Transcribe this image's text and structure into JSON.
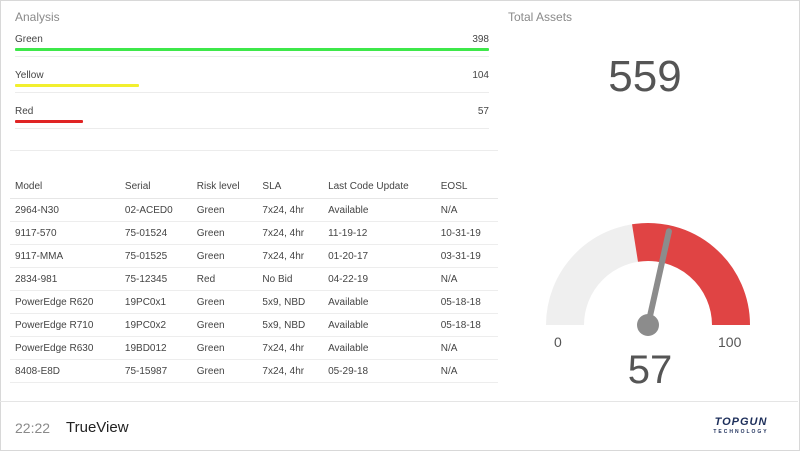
{
  "analysis": {
    "title": "Analysis",
    "bars": [
      {
        "label": "Green",
        "value": "398",
        "fraction": 1.0,
        "color": "#3ee84a"
      },
      {
        "label": "Yellow",
        "value": "104",
        "fraction": 0.261,
        "color": "#f2ef2e"
      },
      {
        "label": "Red",
        "value": "57",
        "fraction": 0.143,
        "color": "#e02424"
      }
    ]
  },
  "table": {
    "headers": [
      "Model",
      "Serial",
      "Risk level",
      "SLA",
      "Last Code Update",
      "EOSL"
    ],
    "rows": [
      [
        "2964-N30",
        "02-ACED0",
        "Green",
        "7x24, 4hr",
        "Available",
        "N/A"
      ],
      [
        "9117-570",
        "75-01524",
        "Green",
        "7x24, 4hr",
        "11-19-12",
        "10-31-19"
      ],
      [
        "9117-MMA",
        "75-01525",
        "Green",
        "7x24, 4hr",
        "01-20-17",
        "03-31-19"
      ],
      [
        "2834-981",
        "75-12345",
        "Red",
        "No Bid",
        "04-22-19",
        "N/A"
      ],
      [
        "PowerEdge R620",
        "19PC0x1",
        "Green",
        "5x9, NBD",
        "Available",
        "05-18-18"
      ],
      [
        "PowerEdge R710",
        "19PC0x2",
        "Green",
        "5x9, NBD",
        "Available",
        "05-18-18"
      ],
      [
        "PowerEdge R630",
        "19BD012",
        "Green",
        "7x24, 4hr",
        "Available",
        "N/A"
      ],
      [
        "8408-E8D",
        "75-15987",
        "Green",
        "7x24, 4hr",
        "05-29-18",
        "N/A"
      ]
    ]
  },
  "total_assets": {
    "title": "Total Assets",
    "value": "559"
  },
  "gauge": {
    "min_label": "0",
    "max_label": "100",
    "value_label": "57",
    "value": 57,
    "min": 0,
    "max": 100,
    "track_color": "#efefef",
    "fill_color": "#e04444",
    "needle_color": "#8c8c8c"
  },
  "footer": {
    "time": "22:22",
    "app_name": "TrueView"
  },
  "logo": {
    "text": "TOPGUN",
    "sub": "TECHNOLOGY",
    "color": "#1c2e5a",
    "accent": "#e02424"
  }
}
